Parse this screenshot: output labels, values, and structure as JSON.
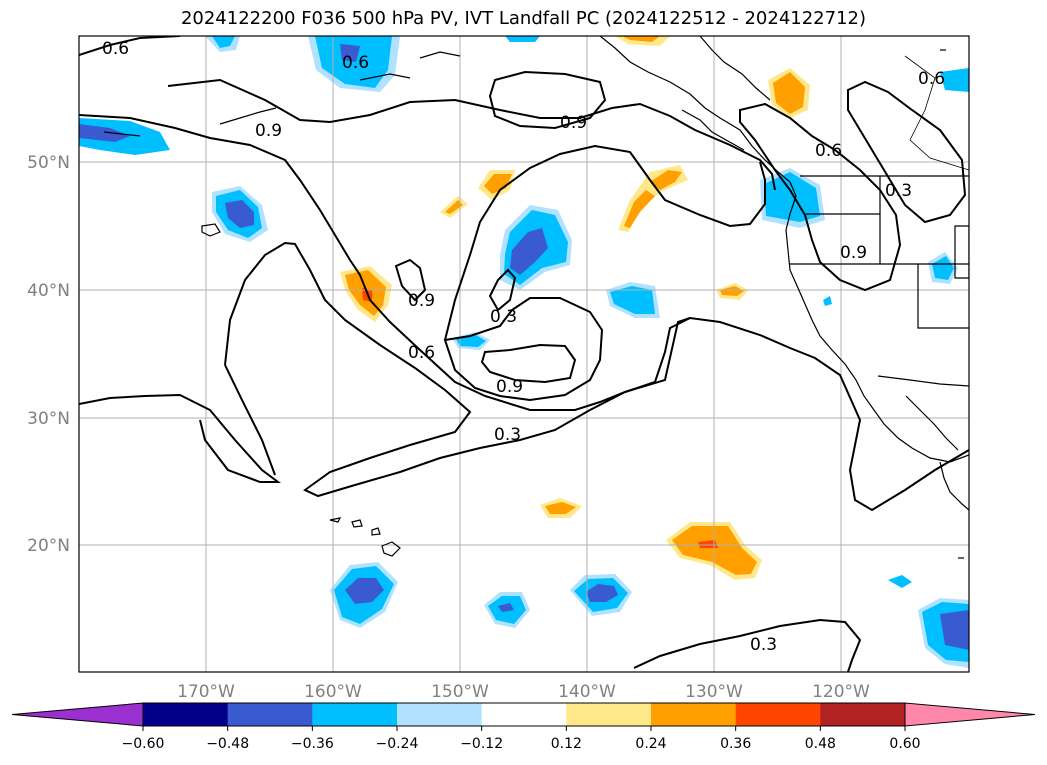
{
  "title": "2024122200 F036 500 hPa PV, IVT Landfall PC (2024122512 - 2024122712)",
  "lon_ticks": [
    "170°W",
    "160°W",
    "150°W",
    "140°W",
    "130°W",
    "120°W"
  ],
  "lat_ticks": [
    "50°N",
    "40°N",
    "30°N",
    "20°N"
  ],
  "contour_labels": [
    "0.6",
    "0.6",
    "0.9",
    "0.9",
    "0.6",
    "0.6",
    "0.3",
    "0.9",
    "0.9",
    "0.3",
    "0.6",
    "0.9",
    "0.3",
    "0.3"
  ],
  "colorbar": {
    "ticks": [
      "−0.60",
      "−0.48",
      "−0.36",
      "−0.24",
      "−0.12",
      "0.12",
      "0.24",
      "0.36",
      "0.48",
      "0.60"
    ],
    "colors": [
      "#9a30d0",
      "#00008b",
      "#3a5ad0",
      "#00bfff",
      "#b0e2ff",
      "#ffffff",
      "#ffe88a",
      "#ffa000",
      "#ff4500",
      "#b22222",
      "#ff88aa"
    ]
  },
  "colors": {
    "neg_dark": "#3a5ad0",
    "neg_mid": "#00bfff",
    "neg_light": "#b0e2ff",
    "pos_light": "#ffe88a",
    "pos_mid": "#ffa000",
    "pos_strong": "#ff4500"
  }
}
